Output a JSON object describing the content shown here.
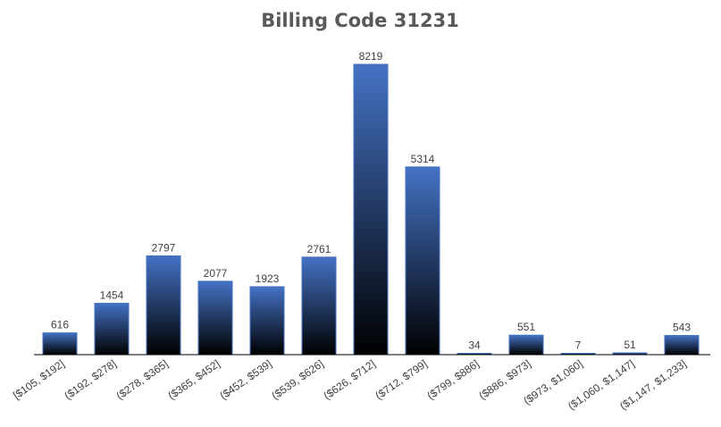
{
  "chart_data": {
    "type": "bar",
    "title": "Billing Code 31231",
    "xlabel": "",
    "ylabel": "",
    "categories": [
      "[$105, $192]",
      "($192, $278]",
      "($278, $365]",
      "($365, $452]",
      "($452, $539]",
      "($539, $626]",
      "($626, $712]",
      "($712, $799]",
      "($799, $886]",
      "($886, $973]",
      "($973, $1,060]",
      "($1,060, $1,147]",
      "($1,147, $1,233]"
    ],
    "values": [
      616,
      1454,
      2797,
      2077,
      1923,
      2761,
      8219,
      5314,
      34,
      551,
      7,
      51,
      543
    ],
    "data_labels": [
      "616",
      "1454",
      "2797",
      "2077",
      "1923",
      "2761",
      "8219",
      "5314",
      "34",
      "551",
      "7",
      "51",
      "543"
    ],
    "ylim": [
      0,
      8219
    ],
    "grid": false,
    "legend": "none",
    "colors": {
      "bar_top": "#4472C4",
      "bar_bottom": "#000000",
      "axis": "#000000"
    }
  }
}
